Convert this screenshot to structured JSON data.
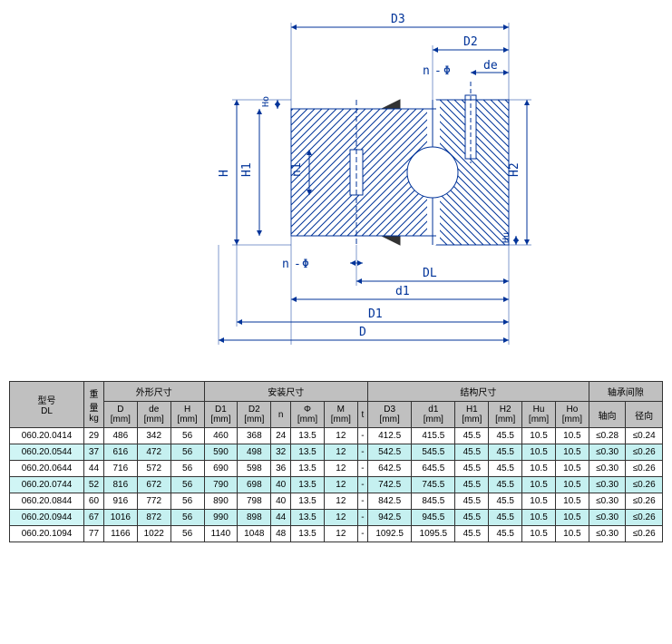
{
  "diagram": {
    "labels": {
      "D3": "D3",
      "D2": "D2",
      "n_top": "n",
      "phi_top": "Φ",
      "de": "de",
      "H": "H",
      "H1": "H1",
      "n1": "n1",
      "Ho": "Ho",
      "H2": "H2",
      "Hu": "Hu",
      "n_bot": "n",
      "phi_bot": "Φ",
      "DL": "DL",
      "d1": "d1",
      "D1": "D1",
      "D": "D"
    },
    "colors": {
      "line": "#003399",
      "hatch": "#003399",
      "bg": "#ffffff"
    },
    "font": {
      "family": "SimSun, monospace",
      "size": 13
    }
  },
  "table": {
    "header_bg": "#c0c0c0",
    "alt_row_bg": "#c5f0f0",
    "group_headers": {
      "model": "型号\nDL",
      "weight": "重\n量\nkg",
      "outline": "外形尺寸",
      "install": "安装尺寸",
      "structure": "结构尺寸",
      "clearance": "轴承间隙"
    },
    "col_headers": {
      "D": "D\n[mm]",
      "de": "de\n[mm]",
      "H": "H\n[mm]",
      "D1": "D1\n[mm]",
      "D2": "D2\n[mm]",
      "n": "n",
      "phi": "Φ\n[mm]",
      "M": "M\n[mm]",
      "t": "t",
      "D3": "D3\n[mm]",
      "d1": "d1\n[mm]",
      "H1": "H1\n[mm]",
      "H2": "H2\n[mm]",
      "Hu": "Hu\n[mm]",
      "Ho": "Ho\n[mm]",
      "axial": "轴向",
      "radial": "径向"
    },
    "rows": [
      {
        "model": "060.20.0414",
        "wt": "29",
        "D": "486",
        "de": "342",
        "H": "56",
        "D1": "460",
        "D2": "368",
        "n": "24",
        "phi": "13.5",
        "M": "12",
        "t": "-",
        "D3": "412.5",
        "d1": "415.5",
        "H1": "45.5",
        "H2": "45.5",
        "Hu": "10.5",
        "Ho": "10.5",
        "ax": "≤0.28",
        "ra": "≤0.24",
        "alt": false
      },
      {
        "model": "060.20.0544",
        "wt": "37",
        "D": "616",
        "de": "472",
        "H": "56",
        "D1": "590",
        "D2": "498",
        "n": "32",
        "phi": "13.5",
        "M": "12",
        "t": "-",
        "D3": "542.5",
        "d1": "545.5",
        "H1": "45.5",
        "H2": "45.5",
        "Hu": "10.5",
        "Ho": "10.5",
        "ax": "≤0.30",
        "ra": "≤0.26",
        "alt": true
      },
      {
        "model": "060.20.0644",
        "wt": "44",
        "D": "716",
        "de": "572",
        "H": "56",
        "D1": "690",
        "D2": "598",
        "n": "36",
        "phi": "13.5",
        "M": "12",
        "t": "-",
        "D3": "642.5",
        "d1": "645.5",
        "H1": "45.5",
        "H2": "45.5",
        "Hu": "10.5",
        "Ho": "10.5",
        "ax": "≤0.30",
        "ra": "≤0.26",
        "alt": false
      },
      {
        "model": "060.20.0744",
        "wt": "52",
        "D": "816",
        "de": "672",
        "H": "56",
        "D1": "790",
        "D2": "698",
        "n": "40",
        "phi": "13.5",
        "M": "12",
        "t": "-",
        "D3": "742.5",
        "d1": "745.5",
        "H1": "45.5",
        "H2": "45.5",
        "Hu": "10.5",
        "Ho": "10.5",
        "ax": "≤0.30",
        "ra": "≤0.26",
        "alt": true
      },
      {
        "model": "060.20.0844",
        "wt": "60",
        "D": "916",
        "de": "772",
        "H": "56",
        "D1": "890",
        "D2": "798",
        "n": "40",
        "phi": "13.5",
        "M": "12",
        "t": "-",
        "D3": "842.5",
        "d1": "845.5",
        "H1": "45.5",
        "H2": "45.5",
        "Hu": "10.5",
        "Ho": "10.5",
        "ax": "≤0.30",
        "ra": "≤0.26",
        "alt": false
      },
      {
        "model": "060.20.0944",
        "wt": "67",
        "D": "1016",
        "de": "872",
        "H": "56",
        "D1": "990",
        "D2": "898",
        "n": "44",
        "phi": "13.5",
        "M": "12",
        "t": "-",
        "D3": "942.5",
        "d1": "945.5",
        "H1": "45.5",
        "H2": "45.5",
        "Hu": "10.5",
        "Ho": "10.5",
        "ax": "≤0.30",
        "ra": "≤0.26",
        "alt": true
      },
      {
        "model": "060.20.1094",
        "wt": "77",
        "D": "1166",
        "de": "1022",
        "H": "56",
        "D1": "1140",
        "D2": "1048",
        "n": "48",
        "phi": "13.5",
        "M": "12",
        "t": "-",
        "D3": "1092.5",
        "d1": "1095.5",
        "H1": "45.5",
        "H2": "45.5",
        "Hu": "10.5",
        "Ho": "10.5",
        "ax": "≤0.30",
        "ra": "≤0.26",
        "alt": false
      }
    ]
  }
}
